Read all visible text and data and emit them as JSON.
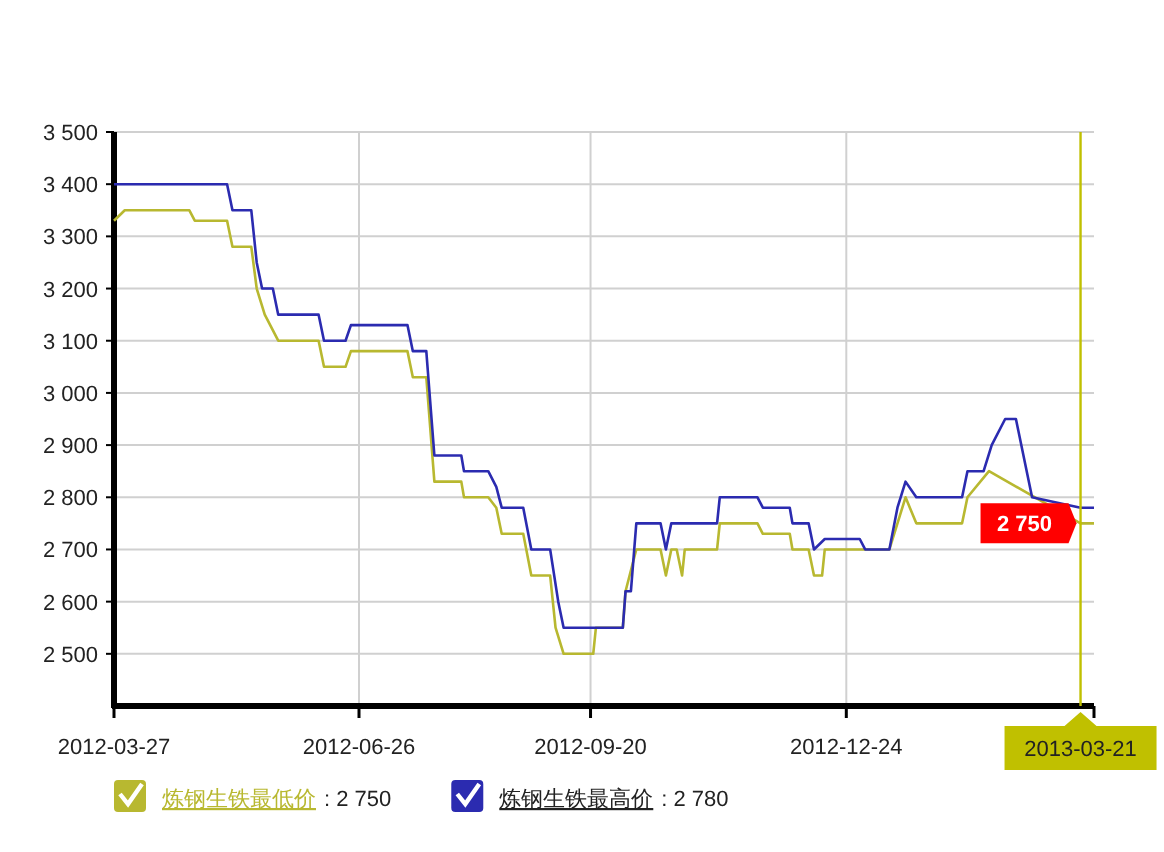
{
  "chart_data": {
    "type": "line",
    "xlim": [
      "2012-03-27",
      "2013-03-26"
    ],
    "ylim": [
      2400,
      3500
    ],
    "xticks": [
      "2012-03-27",
      "2012-06-26",
      "2012-09-20",
      "2012-12-24"
    ],
    "yticks": [
      {
        "value": 2500,
        "label": "2 500"
      },
      {
        "value": 2600,
        "label": "2 600"
      },
      {
        "value": 2700,
        "label": "2 700"
      },
      {
        "value": 2800,
        "label": "2 800"
      },
      {
        "value": 2900,
        "label": "2 900"
      },
      {
        "value": 3000,
        "label": "3 000"
      },
      {
        "value": 3100,
        "label": "3 100"
      },
      {
        "value": 3200,
        "label": "3 200"
      },
      {
        "value": 3300,
        "label": "3 300"
      },
      {
        "value": 3400,
        "label": "3 400"
      },
      {
        "value": 3500,
        "label": "3 500"
      }
    ],
    "grid": true,
    "legend": "bottom",
    "series": [
      {
        "name": "炼钢生铁最低价",
        "color": "#b8b830",
        "x": [
          "2012-03-27",
          "2012-03-31",
          "2012-04-24",
          "2012-04-26",
          "2012-05-08",
          "2012-05-10",
          "2012-05-17",
          "2012-05-19",
          "2012-05-22",
          "2012-05-27",
          "2012-06-11",
          "2012-06-13",
          "2012-06-21",
          "2012-06-23",
          "2012-07-14",
          "2012-07-16",
          "2012-07-21",
          "2012-07-24",
          "2012-08-03",
          "2012-08-04",
          "2012-08-13",
          "2012-08-16",
          "2012-08-18",
          "2012-08-26",
          "2012-08-29",
          "2012-09-05",
          "2012-09-07",
          "2012-09-10",
          "2012-09-21",
          "2012-09-22",
          "2012-10-02",
          "2012-10-03",
          "2012-10-07",
          "2012-10-16",
          "2012-10-18",
          "2012-10-20",
          "2012-10-22",
          "2012-10-24",
          "2012-10-25",
          "2012-11-06",
          "2012-11-07",
          "2012-11-21",
          "2012-11-23",
          "2012-12-03",
          "2012-12-04",
          "2012-12-10",
          "2012-12-12",
          "2012-12-15",
          "2012-12-16",
          "2013-01-09",
          "2013-01-12",
          "2013-01-15",
          "2013-01-19",
          "2013-02-05",
          "2013-02-07",
          "2013-02-15",
          "2013-03-21",
          "2013-03-26"
        ],
        "values": [
          3330,
          3350,
          3350,
          3330,
          3330,
          3280,
          3280,
          3200,
          3150,
          3100,
          3100,
          3050,
          3050,
          3080,
          3080,
          3030,
          3030,
          2830,
          2830,
          2800,
          2800,
          2780,
          2730,
          2730,
          2650,
          2650,
          2550,
          2500,
          2500,
          2550,
          2550,
          2620,
          2700,
          2700,
          2650,
          2700,
          2700,
          2650,
          2700,
          2700,
          2750,
          2750,
          2730,
          2730,
          2700,
          2700,
          2650,
          2650,
          2700,
          2700,
          2750,
          2800,
          2750,
          2750,
          2800,
          2850,
          2750,
          2750
        ],
        "value_labels": [
          null,
          null,
          null,
          null,
          null,
          null,
          null,
          null,
          null,
          null,
          null,
          null,
          null,
          null,
          null,
          null,
          null,
          null,
          null,
          null,
          null,
          null,
          null,
          null,
          null,
          null,
          null,
          null,
          null,
          null,
          null,
          null,
          null,
          null,
          null,
          null,
          null,
          null,
          null,
          null,
          null,
          null,
          null,
          null,
          null,
          null,
          null,
          null,
          null,
          null,
          null,
          null,
          null,
          null,
          null,
          null,
          "2 750",
          null
        ]
      },
      {
        "name": "炼钢生铁最高价",
        "color": "#2b2bb0",
        "x": [
          "2012-03-27",
          "2012-05-08",
          "2012-05-10",
          "2012-05-17",
          "2012-05-19",
          "2012-05-21",
          "2012-05-25",
          "2012-05-27",
          "2012-06-11",
          "2012-06-13",
          "2012-06-21",
          "2012-06-23",
          "2012-07-14",
          "2012-07-16",
          "2012-07-21",
          "2012-07-24",
          "2012-08-03",
          "2012-08-04",
          "2012-08-13",
          "2012-08-16",
          "2012-08-18",
          "2012-08-26",
          "2012-08-29",
          "2012-09-05",
          "2012-09-08",
          "2012-09-10",
          "2012-10-02",
          "2012-10-03",
          "2012-10-05",
          "2012-10-07",
          "2012-10-16",
          "2012-10-18",
          "2012-10-20",
          "2012-11-06",
          "2012-11-07",
          "2012-11-21",
          "2012-11-23",
          "2012-12-03",
          "2012-12-04",
          "2012-12-10",
          "2012-12-12",
          "2012-12-16",
          "2012-12-29",
          "2012-12-31",
          "2013-01-09",
          "2013-01-12",
          "2013-01-15",
          "2013-01-19",
          "2013-02-05",
          "2013-02-07",
          "2013-02-13",
          "2013-02-16",
          "2013-02-21",
          "2013-02-25",
          "2013-03-01",
          "2013-03-03",
          "2013-03-21",
          "2013-03-26"
        ],
        "values": [
          3400,
          3400,
          3350,
          3350,
          3250,
          3200,
          3200,
          3150,
          3150,
          3100,
          3100,
          3130,
          3130,
          3080,
          3080,
          2880,
          2880,
          2850,
          2850,
          2820,
          2780,
          2780,
          2700,
          2700,
          2600,
          2550,
          2550,
          2620,
          2620,
          2750,
          2750,
          2700,
          2750,
          2750,
          2800,
          2800,
          2780,
          2780,
          2750,
          2750,
          2700,
          2720,
          2720,
          2700,
          2700,
          2780,
          2830,
          2800,
          2800,
          2850,
          2850,
          2900,
          2950,
          2950,
          2850,
          2800,
          2780,
          2780
        ]
      }
    ],
    "ref_lines": [
      {
        "axis": "x",
        "value": "2013-03-21",
        "label": "2013-03-21",
        "color": "#c0c000"
      }
    ],
    "annotations": [
      ": 2 750",
      ": 2 780"
    ]
  }
}
